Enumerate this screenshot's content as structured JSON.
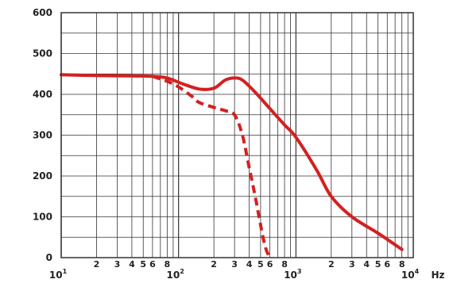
{
  "chart_data": {
    "type": "line",
    "x_scale": "log",
    "xlim": [
      10,
      10000
    ],
    "ylim": [
      0,
      600
    ],
    "x_unit_label": "Hz",
    "grid": true,
    "y_ticks": [
      {
        "value": 0,
        "label": "0"
      },
      {
        "value": 100,
        "label": "100"
      },
      {
        "value": 200,
        "label": "200"
      },
      {
        "value": 300,
        "label": "300"
      },
      {
        "value": 400,
        "label": "400"
      },
      {
        "value": 500,
        "label": "500"
      },
      {
        "value": 600,
        "label": "600"
      }
    ],
    "x_decade_labels": [
      {
        "value": 10,
        "base": "10",
        "exp": "1"
      },
      {
        "value": 100,
        "base": "10",
        "exp": "2"
      },
      {
        "value": 1000,
        "base": "10",
        "exp": "3"
      },
      {
        "value": 10000,
        "base": "10",
        "exp": "4"
      }
    ],
    "x_minor_labels": [
      {
        "value": 20,
        "label": "2"
      },
      {
        "value": 30,
        "label": "3"
      },
      {
        "value": 40,
        "label": "4"
      },
      {
        "value": 50,
        "label": "5"
      },
      {
        "value": 60,
        "label": "6"
      },
      {
        "value": 80,
        "label": "8"
      },
      {
        "value": 200,
        "label": "2"
      },
      {
        "value": 300,
        "label": "3"
      },
      {
        "value": 400,
        "label": "4"
      },
      {
        "value": 500,
        "label": "5"
      },
      {
        "value": 600,
        "label": "6"
      },
      {
        "value": 800,
        "label": "8"
      },
      {
        "value": 2000,
        "label": "2"
      },
      {
        "value": 3000,
        "label": "3"
      },
      {
        "value": 4000,
        "label": "4"
      },
      {
        "value": 5000,
        "label": "5"
      },
      {
        "value": 6000,
        "label": "6"
      },
      {
        "value": 8000,
        "label": "8"
      }
    ],
    "series": [
      {
        "style": "solid",
        "color": "#d42020",
        "x": [
          10,
          20,
          40,
          60,
          80,
          110,
          150,
          200,
          250,
          300,
          350,
          450,
          600,
          800,
          1000,
          1500,
          2000,
          3000,
          5000,
          8000
        ],
        "y": [
          448,
          446,
          445,
          444,
          440,
          425,
          413,
          415,
          435,
          440,
          435,
          405,
          365,
          325,
          295,
          215,
          150,
          100,
          60,
          20
        ]
      },
      {
        "style": "dashed",
        "color": "#d42020",
        "x": [
          60,
          80,
          100,
          130,
          150,
          200,
          250,
          300,
          350,
          400,
          450,
          500,
          550,
          600
        ],
        "y": [
          444,
          432,
          418,
          395,
          380,
          368,
          360,
          350,
          300,
          220,
          150,
          80,
          25,
          0
        ]
      }
    ]
  }
}
